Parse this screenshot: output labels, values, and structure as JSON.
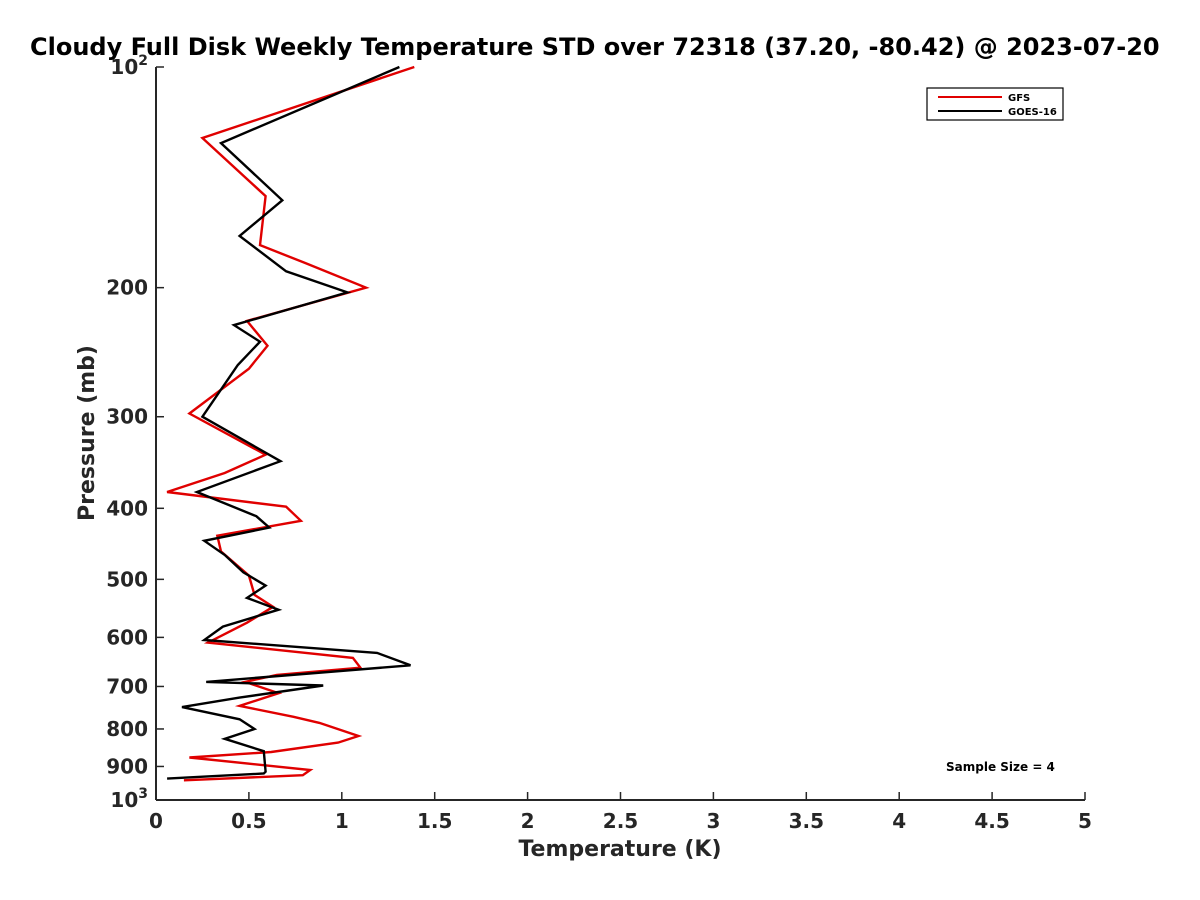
{
  "chart_data": {
    "type": "line",
    "title": "Cloudy Full Disk Weekly Temperature STD over 72318 (37.20, -80.42) @ 2023-07-20",
    "xlabel": "Temperature (K)",
    "ylabel": "Pressure (mb)",
    "xlim": [
      0,
      5
    ],
    "ylim": [
      1000,
      100
    ],
    "yscale": "log",
    "y_reversed": true,
    "grid": false,
    "legend_location": "top-right",
    "x_ticks": [
      0,
      0.5,
      1,
      1.5,
      2,
      2.5,
      3,
      3.5,
      4,
      4.5,
      5
    ],
    "x_tick_labels": [
      "0",
      "0.5",
      "1",
      "1.5",
      "2",
      "2.5",
      "3",
      "3.5",
      "4",
      "4.5",
      "5"
    ],
    "y_ticks": [
      100,
      200,
      300,
      400,
      500,
      600,
      700,
      800,
      900,
      1000
    ],
    "y_tick_labels": [
      {
        "base": "10",
        "exp": "2"
      },
      {
        "base": "200",
        "exp": ""
      },
      {
        "base": "300",
        "exp": ""
      },
      {
        "base": "400",
        "exp": ""
      },
      {
        "base": "500",
        "exp": ""
      },
      {
        "base": "600",
        "exp": ""
      },
      {
        "base": "700",
        "exp": ""
      },
      {
        "base": "800",
        "exp": ""
      },
      {
        "base": "900",
        "exp": ""
      },
      {
        "base": "10",
        "exp": "3"
      }
    ],
    "annotation": "Sample Size = 4",
    "series": [
      {
        "name": "GFS",
        "color": "#e00000",
        "points": [
          [
            1.39,
            100
          ],
          [
            0.25,
            125
          ],
          [
            0.59,
            150
          ],
          [
            0.56,
            175
          ],
          [
            0.8,
            185
          ],
          [
            1.13,
            200
          ],
          [
            0.49,
            222
          ],
          [
            0.6,
            240
          ],
          [
            0.5,
            258
          ],
          [
            0.18,
            297
          ],
          [
            0.59,
            338
          ],
          [
            0.37,
            358
          ],
          [
            0.06,
            380
          ],
          [
            0.7,
            398
          ],
          [
            0.78,
            416
          ],
          [
            0.33,
            436
          ],
          [
            0.35,
            458
          ],
          [
            0.5,
            494
          ],
          [
            0.53,
            525
          ],
          [
            0.63,
            545
          ],
          [
            0.49,
            573
          ],
          [
            0.28,
            610
          ],
          [
            1.06,
            640
          ],
          [
            1.1,
            660
          ],
          [
            0.65,
            675
          ],
          [
            0.48,
            690
          ],
          [
            0.66,
            715
          ],
          [
            0.45,
            744
          ],
          [
            0.74,
            770
          ],
          [
            0.88,
            785
          ],
          [
            1.09,
            818
          ],
          [
            0.98,
            835
          ],
          [
            0.62,
            860
          ],
          [
            0.18,
            875
          ],
          [
            0.83,
            910
          ],
          [
            0.79,
            925
          ],
          [
            0.15,
            940
          ]
        ]
      },
      {
        "name": "GOES-16",
        "color": "#000000",
        "points": [
          [
            1.31,
            100
          ],
          [
            0.35,
            127
          ],
          [
            0.68,
            152
          ],
          [
            0.45,
            170
          ],
          [
            0.7,
            190
          ],
          [
            1.03,
            203
          ],
          [
            0.42,
            225
          ],
          [
            0.56,
            237
          ],
          [
            0.44,
            255
          ],
          [
            0.25,
            300
          ],
          [
            0.67,
            345
          ],
          [
            0.22,
            380
          ],
          [
            0.54,
            410
          ],
          [
            0.61,
            425
          ],
          [
            0.26,
            443
          ],
          [
            0.37,
            463
          ],
          [
            0.47,
            489
          ],
          [
            0.59,
            510
          ],
          [
            0.49,
            530
          ],
          [
            0.66,
            550
          ],
          [
            0.36,
            580
          ],
          [
            0.26,
            605
          ],
          [
            1.19,
            630
          ],
          [
            1.37,
            655
          ],
          [
            0.27,
            690
          ],
          [
            0.9,
            698
          ],
          [
            0.45,
            725
          ],
          [
            0.14,
            747
          ],
          [
            0.45,
            776
          ],
          [
            0.53,
            800
          ],
          [
            0.37,
            825
          ],
          [
            0.58,
            858
          ],
          [
            0.59,
            915
          ],
          [
            0.58,
            920
          ],
          [
            0.06,
            935
          ]
        ]
      }
    ]
  }
}
